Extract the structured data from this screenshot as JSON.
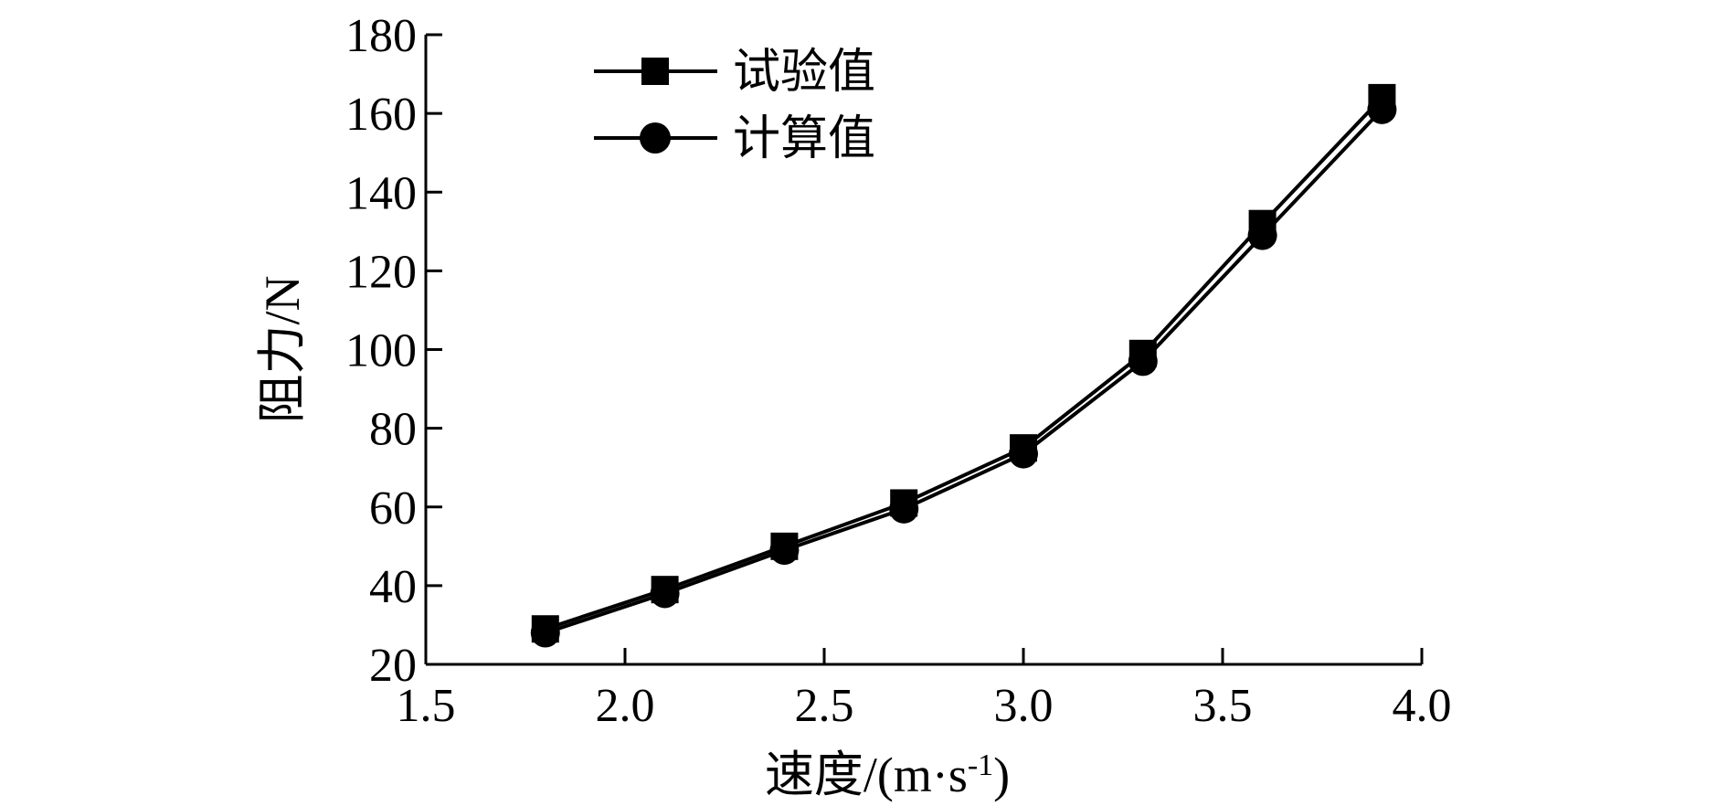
{
  "chart_data": {
    "type": "line",
    "title": "",
    "xlabel": "速度/(m·s",
    "xlabel_sup": "-1",
    "xlabel_tail": ")",
    "ylabel": "阻力/N",
    "xlim": [
      1.5,
      4.0
    ],
    "ylim": [
      20,
      180
    ],
    "xticks": [
      "1.5",
      "2.0",
      "2.5",
      "3.0",
      "3.5",
      "4.0"
    ],
    "yticks": [
      "20",
      "40",
      "60",
      "80",
      "100",
      "120",
      "140",
      "160",
      "180"
    ],
    "grid": false,
    "legend_position": "top-left",
    "x": [
      1.8,
      2.1,
      2.4,
      2.7,
      3.0,
      3.3,
      3.6,
      3.9
    ],
    "series": [
      {
        "name": "试验值",
        "marker": "square",
        "color": "#000000",
        "values": [
          29,
          39,
          50,
          61,
          75,
          99,
          132,
          164
        ]
      },
      {
        "name": "计算值",
        "marker": "circle",
        "color": "#000000",
        "values": [
          28,
          38,
          49,
          59.5,
          73.5,
          97,
          129,
          161
        ]
      }
    ]
  }
}
